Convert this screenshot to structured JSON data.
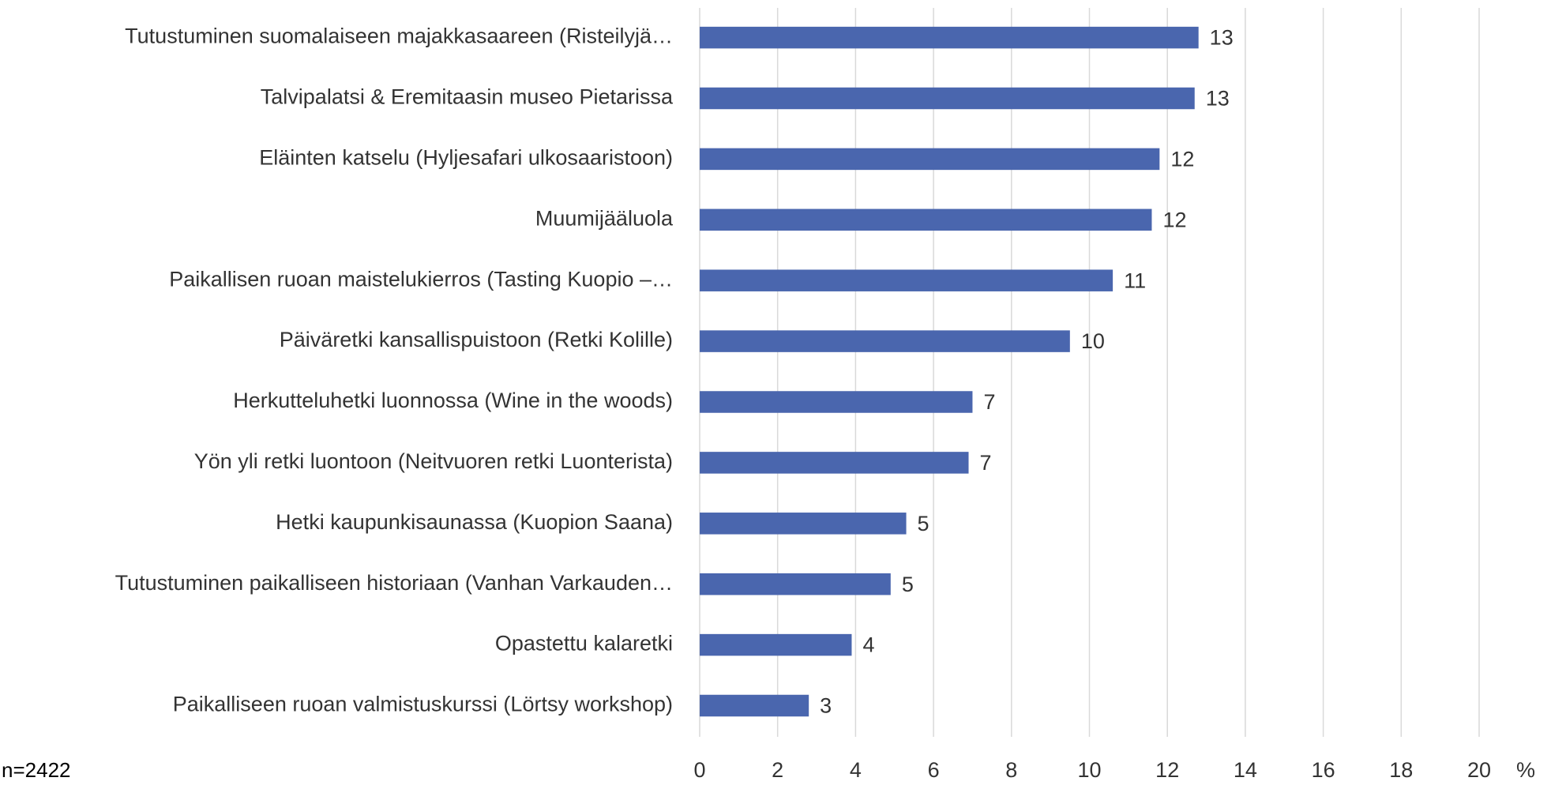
{
  "chart_data": {
    "type": "bar",
    "orientation": "horizontal",
    "categories": [
      "Tutustuminen suomalaiseen majakkasaareen (Risteilyjä…",
      "Talvipalatsi & Eremitaasin museo Pietarissa",
      "Eläinten katselu (Hyljesafari ulkosaaristoon)",
      "Muumijääluola",
      "Paikallisen ruoan maistelukierros (Tasting Kuopio –…",
      "Päiväretki kansallispuistoon (Retki Kolille)",
      "Herkutteluhetki luonnossa (Wine in the woods)",
      "Yön yli retki luontoon (Neitvuoren retki Luonterista)",
      "Hetki kaupunkisaunassa (Kuopion Saana)",
      "Tutustuminen paikalliseen historiaan (Vanhan Varkauden…",
      "Opastettu kalaretki",
      "Paikalliseen ruoan valmistuskurssi (Lörtsy workshop)"
    ],
    "values": [
      12.8,
      12.7,
      11.8,
      11.6,
      10.6,
      9.5,
      7.0,
      6.9,
      5.3,
      4.9,
      3.9,
      2.8
    ],
    "value_labels": [
      "13",
      "13",
      "12",
      "12",
      "11",
      "10",
      "7",
      "7",
      "5",
      "5",
      "4",
      "3"
    ],
    "color": "#4a66ae",
    "xlim": [
      0,
      20
    ],
    "xticks": [
      0,
      2,
      4,
      6,
      8,
      10,
      12,
      14,
      16,
      18,
      20
    ],
    "x_unit": "%",
    "note": "n=2422",
    "grid": true
  }
}
